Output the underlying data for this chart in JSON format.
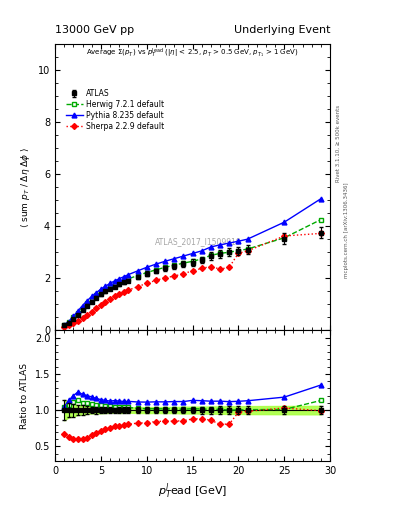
{
  "title_left": "13000 GeV pp",
  "title_right": "Underlying Event",
  "ylabel_main": "⟨ sum p_T / Δη deltaφ ⟩",
  "ylabel_ratio": "Ratio to ATLAS",
  "xlabel": "p_T^{l}ead [GeV]",
  "watermark": "ATLAS_2017_I1509919",
  "right_label1": "Rivet 3.1.10, ≥ 500k events",
  "right_label2": "mcplots.cern.ch [arXiv:1306.3436]",
  "ylim_main": [
    0,
    11
  ],
  "ylim_ratio": [
    0.3,
    2.1
  ],
  "yticks_main": [
    0,
    2,
    4,
    6,
    8,
    10
  ],
  "yticks_ratio": [
    0.5,
    1.0,
    1.5,
    2.0
  ],
  "xlim": [
    0,
    30
  ],
  "atlas_x": [
    1.0,
    1.5,
    2.0,
    2.5,
    3.0,
    3.5,
    4.0,
    4.5,
    5.0,
    5.5,
    6.0,
    6.5,
    7.0,
    7.5,
    8.0,
    9.0,
    10.0,
    11.0,
    12.0,
    13.0,
    14.0,
    15.0,
    16.0,
    17.0,
    18.0,
    19.0,
    20.0,
    21.0,
    25.0,
    29.0
  ],
  "atlas_y": [
    0.21,
    0.3,
    0.45,
    0.6,
    0.78,
    0.95,
    1.1,
    1.25,
    1.38,
    1.5,
    1.6,
    1.68,
    1.76,
    1.84,
    1.91,
    2.05,
    2.18,
    2.28,
    2.38,
    2.46,
    2.55,
    2.6,
    2.7,
    2.85,
    2.92,
    3.0,
    3.05,
    3.1,
    3.52,
    3.75
  ],
  "atlas_yerr": [
    0.03,
    0.03,
    0.04,
    0.04,
    0.05,
    0.05,
    0.05,
    0.06,
    0.06,
    0.06,
    0.06,
    0.06,
    0.07,
    0.07,
    0.07,
    0.08,
    0.09,
    0.09,
    0.1,
    0.1,
    0.12,
    0.12,
    0.13,
    0.14,
    0.15,
    0.16,
    0.16,
    0.17,
    0.2,
    0.22
  ],
  "herwig_x": [
    1.0,
    1.5,
    2.0,
    2.5,
    3.0,
    3.5,
    4.0,
    4.5,
    5.0,
    5.5,
    6.0,
    6.5,
    7.0,
    7.5,
    8.0,
    9.0,
    10.0,
    11.0,
    12.0,
    13.0,
    14.0,
    15.0,
    16.0,
    17.0,
    18.0,
    19.0,
    20.0,
    21.0,
    25.0,
    29.0
  ],
  "herwig_y": [
    0.22,
    0.32,
    0.5,
    0.68,
    0.86,
    1.04,
    1.2,
    1.34,
    1.47,
    1.58,
    1.68,
    1.76,
    1.84,
    1.91,
    1.98,
    2.1,
    2.22,
    2.32,
    2.42,
    2.5,
    2.58,
    2.65,
    2.74,
    2.88,
    2.95,
    3.0,
    3.06,
    3.12,
    3.55,
    4.25
  ],
  "pythia_x": [
    1.0,
    1.5,
    2.0,
    2.5,
    3.0,
    3.5,
    4.0,
    4.5,
    5.0,
    5.5,
    6.0,
    6.5,
    7.0,
    7.5,
    8.0,
    9.0,
    10.0,
    11.0,
    12.0,
    13.0,
    14.0,
    15.0,
    16.0,
    17.0,
    18.0,
    19.0,
    20.0,
    21.0,
    25.0,
    29.0
  ],
  "pythia_y": [
    0.22,
    0.34,
    0.54,
    0.75,
    0.95,
    1.14,
    1.3,
    1.45,
    1.58,
    1.7,
    1.8,
    1.9,
    1.98,
    2.06,
    2.14,
    2.28,
    2.42,
    2.54,
    2.65,
    2.75,
    2.85,
    2.95,
    3.05,
    3.2,
    3.28,
    3.35,
    3.42,
    3.5,
    4.15,
    5.05
  ],
  "sherpa_x": [
    1.0,
    1.5,
    2.0,
    2.5,
    3.0,
    3.5,
    4.0,
    4.5,
    5.0,
    5.5,
    6.0,
    6.5,
    7.0,
    7.5,
    8.0,
    9.0,
    10.0,
    11.0,
    12.0,
    13.0,
    14.0,
    15.0,
    16.0,
    17.0,
    18.0,
    19.0,
    20.0,
    21.0,
    25.0,
    29.0
  ],
  "sherpa_y": [
    0.14,
    0.19,
    0.27,
    0.36,
    0.47,
    0.59,
    0.72,
    0.85,
    0.98,
    1.1,
    1.2,
    1.3,
    1.38,
    1.46,
    1.54,
    1.68,
    1.8,
    1.92,
    2.02,
    2.08,
    2.18,
    2.28,
    2.38,
    2.45,
    2.35,
    2.42,
    2.96,
    3.05,
    3.62,
    3.72
  ],
  "atlas_color": "#000000",
  "herwig_color": "#00aa00",
  "pythia_color": "#0000ff",
  "sherpa_color": "#ff0000",
  "band_color": "#aaff44"
}
